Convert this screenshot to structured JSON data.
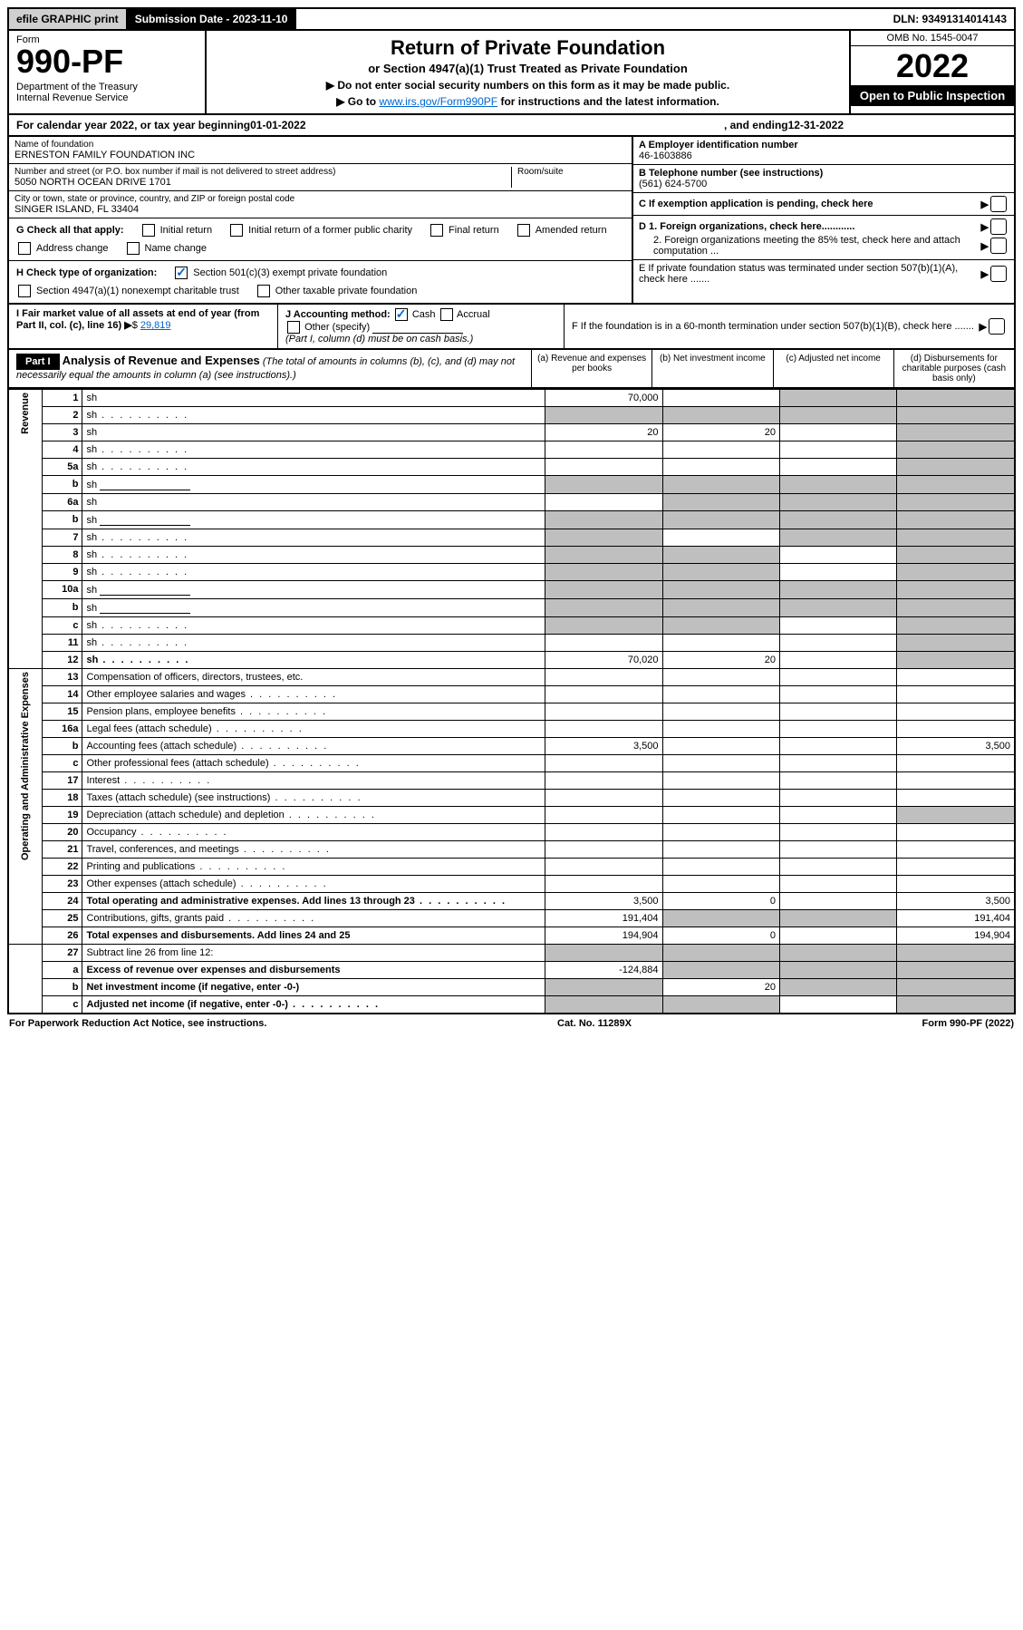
{
  "top": {
    "efile": "efile GRAPHIC print",
    "sub_date_label": "Submission Date - 2023-11-10",
    "dln": "DLN: 93491314014143"
  },
  "header": {
    "form_label": "Form",
    "form_number": "990-PF",
    "dept": "Department of the Treasury\nInternal Revenue Service",
    "title": "Return of Private Foundation",
    "subtitle": "or Section 4947(a)(1) Trust Treated as Private Foundation",
    "instr1": "▶ Do not enter social security numbers on this form as it may be made public.",
    "instr2_pre": "▶ Go to ",
    "instr2_link": "www.irs.gov/Form990PF",
    "instr2_post": " for instructions and the latest information.",
    "omb": "OMB No. 1545-0047",
    "year": "2022",
    "open": "Open to Public Inspection"
  },
  "calyear": {
    "pre": "For calendar year 2022, or tax year beginning ",
    "begin": "01-01-2022",
    "mid": " , and ending ",
    "end": "12-31-2022"
  },
  "entity": {
    "name_label": "Name of foundation",
    "name": "ERNESTON FAMILY FOUNDATION INC",
    "addr_label": "Number and street (or P.O. box number if mail is not delivered to street address)",
    "addr": "5050 NORTH OCEAN DRIVE 1701",
    "room_label": "Room/suite",
    "city_label": "City or town, state or province, country, and ZIP or foreign postal code",
    "city": "SINGER ISLAND, FL  33404",
    "a_label": "A Employer identification number",
    "a_val": "46-1603886",
    "b_label": "B Telephone number (see instructions)",
    "b_val": "(561) 624-5700",
    "c_label": "C If exemption application is pending, check here",
    "d1": "D 1. Foreign organizations, check here............",
    "d2": "2. Foreign organizations meeting the 85% test, check here and attach computation ...",
    "e": "E  If private foundation status was terminated under section 507(b)(1)(A), check here .......",
    "f": "F  If the foundation is in a 60-month termination under section 507(b)(1)(B), check here .......",
    "g_label": "G Check all that apply:",
    "g_opts": [
      "Initial return",
      "Initial return of a former public charity",
      "Final return",
      "Amended return",
      "Address change",
      "Name change"
    ],
    "h_label": "H Check type of organization:",
    "h_opts": [
      "Section 501(c)(3) exempt private foundation",
      "Section 4947(a)(1) nonexempt charitable trust",
      "Other taxable private foundation"
    ],
    "i_label": "I Fair market value of all assets at end of year (from Part II, col. (c), line 16)",
    "i_val": "29,819",
    "j_label": "J Accounting method:",
    "j_opts": [
      "Cash",
      "Accrual",
      "Other (specify)"
    ],
    "j_note": "(Part I, column (d) must be on cash basis.)"
  },
  "part1": {
    "label": "Part I",
    "title": "Analysis of Revenue and Expenses",
    "note": " (The total of amounts in columns (b), (c), and (d) may not necessarily equal the amounts in column (a) (see instructions).)",
    "cols": {
      "a": "(a)   Revenue and expenses per books",
      "b": "(b)   Net investment income",
      "c": "(c)   Adjusted net income",
      "d": "(d)   Disbursements for charitable purposes (cash basis only)"
    }
  },
  "sections": {
    "revenue": "Revenue",
    "opex": "Operating and Administrative Expenses"
  },
  "rows": [
    {
      "n": "1",
      "d": "sh",
      "a": "70,000",
      "b": "",
      "c": "sh"
    },
    {
      "n": "2",
      "d": "sh",
      "a": "sh",
      "b": "sh",
      "c": "sh",
      "dots": true
    },
    {
      "n": "3",
      "d": "sh",
      "a": "20",
      "b": "20",
      "c": ""
    },
    {
      "n": "4",
      "d": "sh",
      "a": "",
      "b": "",
      "c": "",
      "dots": true
    },
    {
      "n": "5a",
      "d": "sh",
      "a": "",
      "b": "",
      "c": "",
      "dots": true
    },
    {
      "n": "b",
      "d": "sh",
      "a": "sh",
      "b": "sh",
      "c": "sh",
      "input": true
    },
    {
      "n": "6a",
      "d": "sh",
      "a": "",
      "b": "sh",
      "c": "sh"
    },
    {
      "n": "b",
      "d": "sh",
      "a": "sh",
      "b": "sh",
      "c": "sh",
      "input": true
    },
    {
      "n": "7",
      "d": "sh",
      "a": "sh",
      "b": "",
      "c": "sh",
      "dots": true
    },
    {
      "n": "8",
      "d": "sh",
      "a": "sh",
      "b": "sh",
      "c": "",
      "dots": true
    },
    {
      "n": "9",
      "d": "sh",
      "a": "sh",
      "b": "sh",
      "c": "",
      "dots": true
    },
    {
      "n": "10a",
      "d": "sh",
      "a": "sh",
      "b": "sh",
      "c": "sh",
      "input": true
    },
    {
      "n": "b",
      "d": "sh",
      "a": "sh",
      "b": "sh",
      "c": "sh",
      "input": true,
      "dots": true
    },
    {
      "n": "c",
      "d": "sh",
      "a": "sh",
      "b": "sh",
      "c": "",
      "dots": true
    },
    {
      "n": "11",
      "d": "sh",
      "a": "",
      "b": "",
      "c": "",
      "dots": true
    },
    {
      "n": "12",
      "d": "sh",
      "a": "70,020",
      "b": "20",
      "c": "",
      "bold": true,
      "dots": true
    }
  ],
  "rows2": [
    {
      "n": "13",
      "d": "Compensation of officers, directors, trustees, etc.",
      "a": "",
      "b": "",
      "c": "",
      "dd": ""
    },
    {
      "n": "14",
      "d": "Other employee salaries and wages",
      "a": "",
      "b": "",
      "c": "",
      "dd": "",
      "dots": true
    },
    {
      "n": "15",
      "d": "Pension plans, employee benefits",
      "a": "",
      "b": "",
      "c": "",
      "dd": "",
      "dots": true
    },
    {
      "n": "16a",
      "d": "Legal fees (attach schedule)",
      "a": "",
      "b": "",
      "c": "",
      "dd": "",
      "dots": true
    },
    {
      "n": "b",
      "d": "Accounting fees (attach schedule)",
      "a": "3,500",
      "b": "",
      "c": "",
      "dd": "3,500",
      "dots": true
    },
    {
      "n": "c",
      "d": "Other professional fees (attach schedule)",
      "a": "",
      "b": "",
      "c": "",
      "dd": "",
      "dots": true
    },
    {
      "n": "17",
      "d": "Interest",
      "a": "",
      "b": "",
      "c": "",
      "dd": "",
      "dots": true
    },
    {
      "n": "18",
      "d": "Taxes (attach schedule) (see instructions)",
      "a": "",
      "b": "",
      "c": "",
      "dd": "",
      "dots": true
    },
    {
      "n": "19",
      "d": "Depreciation (attach schedule) and depletion",
      "a": "",
      "b": "",
      "c": "",
      "dd": "sh",
      "dots": true
    },
    {
      "n": "20",
      "d": "Occupancy",
      "a": "",
      "b": "",
      "c": "",
      "dd": "",
      "dots": true
    },
    {
      "n": "21",
      "d": "Travel, conferences, and meetings",
      "a": "",
      "b": "",
      "c": "",
      "dd": "",
      "dots": true
    },
    {
      "n": "22",
      "d": "Printing and publications",
      "a": "",
      "b": "",
      "c": "",
      "dd": "",
      "dots": true
    },
    {
      "n": "23",
      "d": "Other expenses (attach schedule)",
      "a": "",
      "b": "",
      "c": "",
      "dd": "",
      "dots": true
    },
    {
      "n": "24",
      "d": "Total operating and administrative expenses. Add lines 13 through 23",
      "a": "3,500",
      "b": "0",
      "c": "",
      "dd": "3,500",
      "bold": true,
      "dots": true
    },
    {
      "n": "25",
      "d": "Contributions, gifts, grants paid",
      "a": "191,404",
      "b": "sh",
      "c": "sh",
      "dd": "191,404",
      "dots": true
    },
    {
      "n": "26",
      "d": "Total expenses and disbursements. Add lines 24 and 25",
      "a": "194,904",
      "b": "0",
      "c": "",
      "dd": "194,904",
      "bold": true
    }
  ],
  "rows3": [
    {
      "n": "27",
      "d": "Subtract line 26 from line 12:",
      "a": "sh",
      "b": "sh",
      "c": "sh",
      "dd": "sh"
    },
    {
      "n": "a",
      "d": "Excess of revenue over expenses and disbursements",
      "a": "-124,884",
      "b": "sh",
      "c": "sh",
      "dd": "sh",
      "bold": true
    },
    {
      "n": "b",
      "d": "Net investment income (if negative, enter -0-)",
      "a": "sh",
      "b": "20",
      "c": "sh",
      "dd": "sh",
      "bold": true
    },
    {
      "n": "c",
      "d": "Adjusted net income (if negative, enter -0-)",
      "a": "sh",
      "b": "sh",
      "c": "",
      "dd": "sh",
      "bold": true,
      "dots": true
    }
  ],
  "footer": {
    "left": "For Paperwork Reduction Act Notice, see instructions.",
    "mid": "Cat. No. 11289X",
    "right": "Form 990-PF (2022)"
  },
  "colors": {
    "link": "#0066cc",
    "shade": "#bfbfbf"
  }
}
